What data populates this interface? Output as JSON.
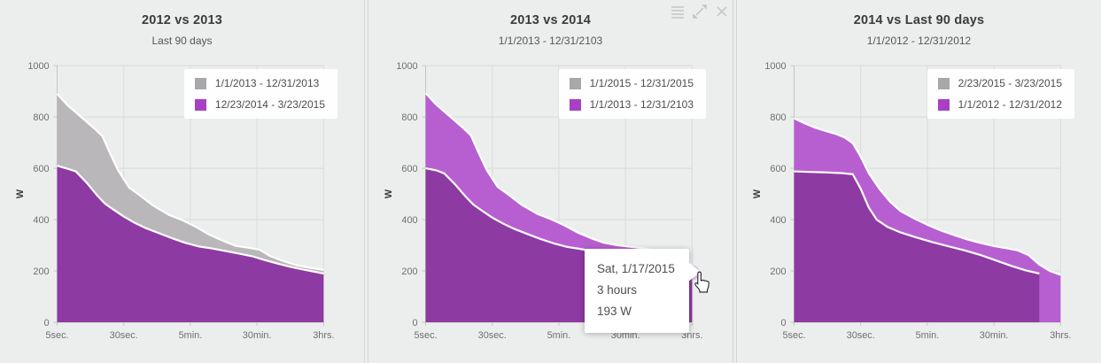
{
  "page": {
    "background": "#eceeed",
    "units": "W"
  },
  "style": {
    "grid": "#d9dbda",
    "axis": "#c3c5c4",
    "marker_halo": "rgba(186,101,211,0.38)",
    "marker_ring": "#9b44b5",
    "icon_color": "#c4c7c9"
  },
  "toolbar": {
    "icons": [
      "menu-icon",
      "expand-icon",
      "close-icon"
    ]
  },
  "tooltip": {
    "date": "Sat, 1/17/2015",
    "duration": "3 hours",
    "power": "193 W"
  },
  "chart_data": [
    {
      "type": "area",
      "title": "2012 vs 2013",
      "subtitle": "Last 90 days",
      "ylabel": "W",
      "ylim": [
        0,
        1000
      ],
      "y_ticks": [
        0,
        200,
        400,
        600,
        800,
        1000
      ],
      "x_ticks": [
        "5sec.",
        "30sec.",
        "5min.",
        "30min.",
        "3hrs."
      ],
      "x_scale": "log-time",
      "grid": true,
      "legend_position": "top-right",
      "series": [
        {
          "name": "1/1/2013 - 12/31/2013",
          "role": "back",
          "swatch": "#a9a7aa",
          "fill": "#b9b7ba",
          "points": [
            [
              0,
              890
            ],
            [
              0.04,
              845
            ],
            [
              0.09,
              800
            ],
            [
              0.14,
              755
            ],
            [
              0.17,
              725
            ],
            [
              0.2,
              655
            ],
            [
              0.23,
              590
            ],
            [
              0.27,
              525
            ],
            [
              0.31,
              495
            ],
            [
              0.36,
              455
            ],
            [
              0.42,
              418
            ],
            [
              0.47,
              398
            ],
            [
              0.52,
              372
            ],
            [
              0.57,
              342
            ],
            [
              0.62,
              318
            ],
            [
              0.67,
              298
            ],
            [
              0.72,
              290
            ],
            [
              0.76,
              283
            ],
            [
              0.8,
              258
            ],
            [
              0.85,
              238
            ],
            [
              0.9,
              222
            ],
            [
              0.95,
              212
            ],
            [
              1,
              204
            ]
          ]
        },
        {
          "name": "12/23/2014 - 3/23/2015",
          "role": "front",
          "swatch": "#a840c4",
          "fill": "#8e3aa3",
          "points": [
            [
              0,
              610
            ],
            [
              0.04,
              598
            ],
            [
              0.07,
              588
            ],
            [
              0.11,
              545
            ],
            [
              0.15,
              495
            ],
            [
              0.18,
              462
            ],
            [
              0.21,
              440
            ],
            [
              0.25,
              412
            ],
            [
              0.29,
              388
            ],
            [
              0.33,
              368
            ],
            [
              0.38,
              348
            ],
            [
              0.43,
              328
            ],
            [
              0.48,
              310
            ],
            [
              0.53,
              296
            ],
            [
              0.58,
              288
            ],
            [
              0.63,
              278
            ],
            [
              0.68,
              268
            ],
            [
              0.73,
              258
            ],
            [
              0.78,
              242
            ],
            [
              0.83,
              228
            ],
            [
              0.88,
              215
            ],
            [
              0.93,
              204
            ],
            [
              1,
              190
            ]
          ]
        }
      ]
    },
    {
      "type": "area",
      "title": "2013 vs 2014",
      "subtitle": "1/1/2013 - 12/31/2103",
      "ylabel": "W",
      "ylim": [
        0,
        1000
      ],
      "y_ticks": [
        0,
        200,
        400,
        600,
        800,
        1000
      ],
      "x_ticks": [
        "5sec.",
        "30sec.",
        "5min.",
        "30min.",
        "3hrs."
      ],
      "x_scale": "log-time",
      "grid": true,
      "legend_position": "top-right",
      "marker": {
        "t": 1,
        "w": 193
      },
      "series": [
        {
          "name": "1/1/2015 - 12/31/2015",
          "role": "front",
          "swatch": "#a9a7aa",
          "fill": "#8e3aa3",
          "points": [
            [
              0,
              600
            ],
            [
              0.04,
              592
            ],
            [
              0.07,
              580
            ],
            [
              0.11,
              538
            ],
            [
              0.15,
              490
            ],
            [
              0.18,
              458
            ],
            [
              0.21,
              436
            ],
            [
              0.25,
              408
            ],
            [
              0.29,
              385
            ],
            [
              0.33,
              365
            ],
            [
              0.38,
              345
            ],
            [
              0.43,
              325
            ],
            [
              0.48,
              308
            ],
            [
              0.53,
              294
            ],
            [
              0.58,
              286
            ],
            [
              0.63,
              276
            ],
            [
              0.68,
              266
            ],
            [
              0.73,
              256
            ],
            [
              0.78,
              240
            ],
            [
              0.83,
              226
            ],
            [
              0.88,
              213
            ],
            [
              0.93,
              202
            ],
            [
              1,
              190
            ]
          ]
        },
        {
          "name": "1/1/2013 - 12/31/2103",
          "role": "back",
          "swatch": "#a840c4",
          "fill": "#b75fd0",
          "points": [
            [
              0,
              893
            ],
            [
              0.04,
              848
            ],
            [
              0.09,
              803
            ],
            [
              0.14,
              758
            ],
            [
              0.17,
              728
            ],
            [
              0.2,
              658
            ],
            [
              0.23,
              592
            ],
            [
              0.27,
              528
            ],
            [
              0.31,
              498
            ],
            [
              0.36,
              458
            ],
            [
              0.42,
              422
            ],
            [
              0.47,
              402
            ],
            [
              0.52,
              378
            ],
            [
              0.57,
              350
            ],
            [
              0.62,
              328
            ],
            [
              0.67,
              310
            ],
            [
              0.72,
              300
            ],
            [
              0.77,
              294
            ],
            [
              0.82,
              288
            ],
            [
              0.87,
              278
            ],
            [
              0.91,
              262
            ],
            [
              0.95,
              235
            ],
            [
              1,
              193
            ]
          ]
        }
      ]
    },
    {
      "type": "area",
      "title": "2014 vs Last 90 days",
      "subtitle": "1/1/2012 - 12/31/2012",
      "ylabel": "W",
      "ylim": [
        0,
        1000
      ],
      "y_ticks": [
        0,
        200,
        400,
        600,
        800,
        1000
      ],
      "x_ticks": [
        "5sec.",
        "30sec.",
        "5min.",
        "30min.",
        "3hrs."
      ],
      "x_scale": "log-time",
      "grid": true,
      "legend_position": "top-right",
      "series": [
        {
          "name": "2/23/2015 - 3/23/2015",
          "role": "front",
          "swatch": "#a9a7aa",
          "fill": "#8e3aa3",
          "points": [
            [
              0,
              588
            ],
            [
              0.06,
              586
            ],
            [
              0.12,
              584
            ],
            [
              0.18,
              581
            ],
            [
              0.22,
              577
            ],
            [
              0.25,
              520
            ],
            [
              0.28,
              448
            ],
            [
              0.31,
              400
            ],
            [
              0.35,
              372
            ],
            [
              0.4,
              350
            ],
            [
              0.46,
              330
            ],
            [
              0.52,
              312
            ],
            [
              0.58,
              296
            ],
            [
              0.64,
              280
            ],
            [
              0.7,
              262
            ],
            [
              0.76,
              240
            ],
            [
              0.82,
              218
            ],
            [
              0.87,
              202
            ],
            [
              0.92,
              190
            ]
          ]
        },
        {
          "name": "1/1/2012 - 12/31/2012",
          "role": "back",
          "swatch": "#a840c4",
          "fill": "#b75fd0",
          "points": [
            [
              0,
              795
            ],
            [
              0.04,
              775
            ],
            [
              0.08,
              758
            ],
            [
              0.12,
              745
            ],
            [
              0.16,
              733
            ],
            [
              0.19,
              720
            ],
            [
              0.22,
              698
            ],
            [
              0.25,
              645
            ],
            [
              0.28,
              582
            ],
            [
              0.32,
              520
            ],
            [
              0.36,
              470
            ],
            [
              0.4,
              433
            ],
            [
              0.45,
              405
            ],
            [
              0.5,
              380
            ],
            [
              0.55,
              358
            ],
            [
              0.6,
              340
            ],
            [
              0.65,
              323
            ],
            [
              0.7,
              309
            ],
            [
              0.75,
              297
            ],
            [
              0.8,
              288
            ],
            [
              0.84,
              280
            ],
            [
              0.88,
              262
            ],
            [
              0.92,
              225
            ],
            [
              0.96,
              200
            ],
            [
              1,
              185
            ]
          ]
        }
      ]
    }
  ]
}
